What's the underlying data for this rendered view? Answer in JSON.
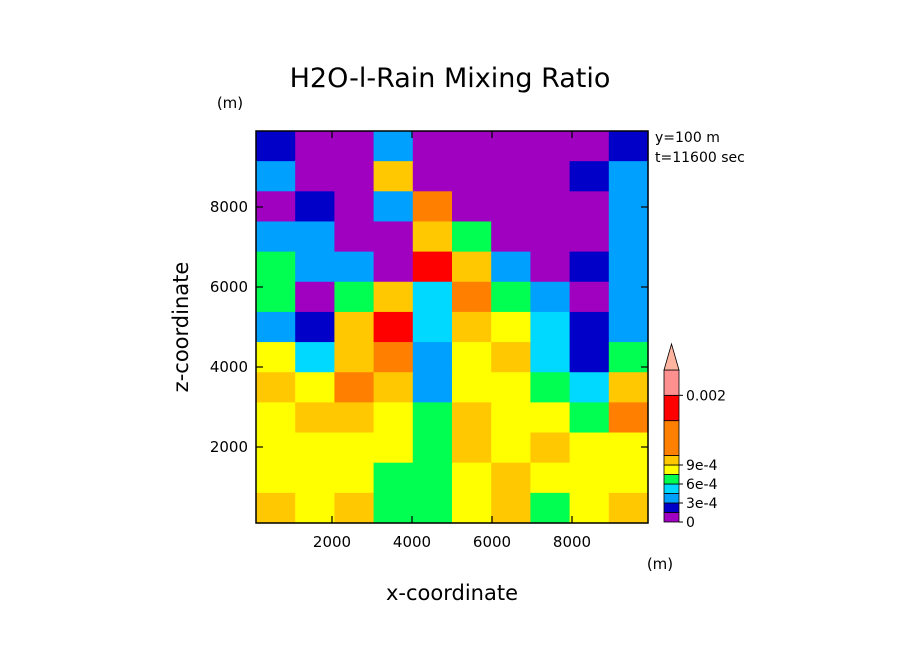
{
  "chart_data": {
    "type": "heatmap",
    "title": "H2O-l-Rain Mixing Ratio",
    "xlabel": "x-coordinate",
    "ylabel": "z-coordinate",
    "x_unit": "(m)",
    "y_unit": "(m)",
    "annotations": [
      "y=100 m",
      "t=11600 sec"
    ],
    "xlim": [
      100,
      9900
    ],
    "ylim": [
      100,
      9900
    ],
    "x_ticks": [
      2000,
      4000,
      6000,
      8000
    ],
    "y_ticks": [
      2000,
      4000,
      6000,
      8000
    ],
    "grid": false,
    "colorbar": {
      "placement": "right",
      "extend": "max",
      "levels": [
        0,
        0.00015,
        0.0003,
        0.00045,
        0.0006,
        0.00075,
        0.0009,
        0.00105,
        0.0016,
        0.002
      ],
      "labels": [
        {
          "text": "0",
          "value": 0
        },
        {
          "text": "3e-4",
          "value": 0.0003
        },
        {
          "text": "6e-4",
          "value": 0.0006
        },
        {
          "text": "9e-4",
          "value": 0.0009
        },
        {
          "text": "0.002",
          "value": 0.002
        }
      ],
      "colors": [
        "#a000c0",
        "#0000c8",
        "#00a0ff",
        "#00d9ff",
        "#00ff50",
        "#ffff00",
        "#ffc800",
        "#ff8000",
        "#ff0000",
        "#ff9090"
      ],
      "extend_color": "#ffb4a0"
    },
    "field": {
      "z_levels": [
        9700,
        8900,
        8100,
        7300,
        6500,
        5700,
        4900,
        4100,
        3300,
        2500,
        1700,
        900,
        300
      ],
      "x_points": [
        500,
        1500,
        2500,
        3500,
        4500,
        5500,
        6500,
        7500,
        8500,
        9500
      ],
      "values": [
        [
          0.00015,
          0.0,
          0.0,
          0.0003,
          0.0,
          0.0,
          0.0,
          0.0,
          0.0,
          0.00015
        ],
        [
          0.0003,
          0.0,
          0.0,
          0.0009,
          0.0,
          0.0,
          0.0,
          0.0,
          0.00015,
          0.0003
        ],
        [
          0.0,
          0.00015,
          0.0,
          0.0003,
          0.0014,
          0.0,
          0.0,
          0.0,
          0.0,
          0.0003
        ],
        [
          0.0003,
          0.0003,
          0.0,
          0.0,
          0.0009,
          0.0006,
          0.0,
          0.0,
          0.0,
          0.0003
        ],
        [
          0.0006,
          0.0003,
          0.0003,
          0.0,
          0.0016,
          0.0009,
          0.0003,
          0.0,
          0.00015,
          0.0003
        ],
        [
          0.0006,
          0.0,
          0.0006,
          0.0009,
          0.00045,
          0.0012,
          0.0006,
          0.0003,
          0.0,
          0.0003
        ],
        [
          0.0003,
          0.00015,
          0.0009,
          0.0016,
          0.00045,
          0.0009,
          0.00075,
          0.00045,
          0.00015,
          0.0003
        ],
        [
          0.00075,
          0.00045,
          0.0009,
          0.0012,
          0.0003,
          0.00075,
          0.0009,
          0.00045,
          0.00015,
          0.0006
        ],
        [
          0.0009,
          0.00075,
          0.0012,
          0.0009,
          0.0003,
          0.00075,
          0.00075,
          0.0006,
          0.00045,
          0.0009
        ],
        [
          0.00075,
          0.0009,
          0.0009,
          0.00075,
          0.0006,
          0.0009,
          0.00075,
          0.00075,
          0.0006,
          0.0012
        ],
        [
          0.00075,
          0.00075,
          0.00075,
          0.00075,
          0.0006,
          0.0009,
          0.00075,
          0.0009,
          0.00075,
          0.00075
        ],
        [
          0.00075,
          0.00075,
          0.00075,
          0.0006,
          0.0006,
          0.00075,
          0.0009,
          0.00075,
          0.00075,
          0.00075
        ],
        [
          0.0009,
          0.00075,
          0.0009,
          0.0006,
          0.0006,
          0.00075,
          0.0009,
          0.0006,
          0.00075,
          0.0009
        ]
      ]
    }
  }
}
